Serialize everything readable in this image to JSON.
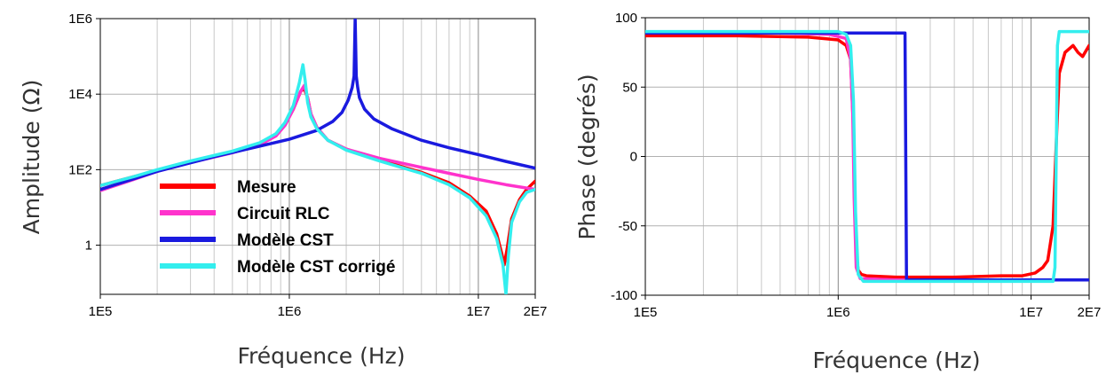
{
  "chart_data": [
    {
      "type": "line",
      "xscale": "log",
      "yscale": "log",
      "xlim": [
        100000,
        20000000
      ],
      "ylim": [
        0.05,
        1000000
      ],
      "xlabel": "Fréquence  (Hz)",
      "ylabel": "Amplitude (Ω)",
      "x_ticks": [
        {
          "value": 100000,
          "label": "1E5"
        },
        {
          "value": 1000000,
          "label": "1E6"
        },
        {
          "value": 10000000,
          "label": "1E7"
        },
        {
          "value": 20000000,
          "label": "2E7"
        }
      ],
      "y_ticks": [
        {
          "value": 1,
          "label": "1"
        },
        {
          "value": 100,
          "label": "1E2"
        },
        {
          "value": 10000,
          "label": "1E4"
        },
        {
          "value": 1000000,
          "label": "1E6"
        }
      ],
      "grid": true,
      "legend_position": "bottom-left",
      "series": [
        {
          "name": "Mesure",
          "color": "#ff0000",
          "x": [
            100000,
            150000,
            200000,
            300000,
            500000,
            700000,
            850000,
            950000,
            1050000,
            1150000,
            1200000,
            1250000,
            1300000,
            1400000,
            1600000,
            2000000,
            3000000,
            5000000,
            7000000,
            9000000,
            11000000,
            12500000,
            13300000,
            13700000,
            14200000,
            15000000,
            16500000,
            18000000,
            20000000
          ],
          "y": [
            38,
            65,
            95,
            160,
            290,
            480,
            800,
            1600,
            4000,
            12000,
            14000,
            8000,
            3000,
            1300,
            600,
            350,
            180,
            85,
            45,
            20,
            8,
            2,
            0.6,
            0.3,
            0.8,
            5,
            16,
            30,
            50
          ]
        },
        {
          "name": "Circuit RLC",
          "color": "#ff33cc",
          "x": [
            100000,
            150000,
            200000,
            300000,
            500000,
            700000,
            850000,
            950000,
            1050000,
            1150000,
            1200000,
            1250000,
            1300000,
            1400000,
            1600000,
            2000000,
            3000000,
            5000000,
            7000000,
            10000000,
            14000000,
            20000000
          ],
          "y": [
            28,
            55,
            90,
            155,
            280,
            460,
            780,
            1500,
            4000,
            12000,
            17000,
            8000,
            3000,
            1300,
            600,
            350,
            200,
            115,
            80,
            55,
            40,
            30
          ]
        },
        {
          "name": "Modèle CST",
          "color": "#1a1adf",
          "x": [
            100000,
            200000,
            400000,
            700000,
            1000000,
            1400000,
            1700000,
            1900000,
            2050000,
            2150000,
            2200000,
            2230000,
            2260000,
            2300000,
            2350000,
            2500000,
            2800000,
            3500000,
            5000000,
            7000000,
            10000000,
            14000000,
            20000000
          ],
          "y": [
            30,
            90,
            220,
            420,
            640,
            1100,
            1900,
            3300,
            7000,
            15000,
            30000,
            1000000,
            30000,
            15000,
            8000,
            4000,
            2200,
            1200,
            600,
            380,
            250,
            165,
            110
          ]
        },
        {
          "name": "Modèle CST corrigé",
          "color": "#33eeee",
          "x": [
            100000,
            150000,
            200000,
            300000,
            500000,
            700000,
            850000,
            950000,
            1050000,
            1130000,
            1180000,
            1210000,
            1250000,
            1300000,
            1400000,
            1600000,
            2000000,
            3000000,
            5000000,
            7000000,
            9000000,
            11000000,
            12500000,
            13500000,
            14000000,
            14400000,
            15000000,
            16500000,
            18000000,
            20000000
          ],
          "y": [
            38,
            65,
            100,
            170,
            310,
            520,
            900,
            1800,
            5000,
            20000,
            60000,
            25000,
            6000,
            2500,
            1200,
            600,
            330,
            170,
            80,
            40,
            18,
            6,
            1.5,
            0.3,
            0.05,
            0.5,
            4,
            14,
            25,
            30
          ]
        }
      ]
    },
    {
      "type": "line",
      "xscale": "log",
      "xlim": [
        100000,
        20000000
      ],
      "ylim": [
        -100,
        100
      ],
      "xlabel": "Fréquence  (Hz)",
      "ylabel": "Phase  (degrés)",
      "x_ticks": [
        {
          "value": 100000,
          "label": "1E5"
        },
        {
          "value": 1000000,
          "label": "1E6"
        },
        {
          "value": 10000000,
          "label": "1E7"
        },
        {
          "value": 20000000,
          "label": "2E7"
        }
      ],
      "y_ticks": [
        {
          "value": -100,
          "label": "-100"
        },
        {
          "value": -50,
          "label": "-50"
        },
        {
          "value": 0,
          "label": "0"
        },
        {
          "value": 50,
          "label": "50"
        },
        {
          "value": 100,
          "label": "100"
        }
      ],
      "grid": true,
      "series": [
        {
          "name": "Mesure",
          "color": "#ff0000",
          "x": [
            100000,
            300000,
            700000,
            1000000,
            1100000,
            1160000,
            1200000,
            1220000,
            1240000,
            1270000,
            1320000,
            1400000,
            2000000,
            4000000,
            7000000,
            9000000,
            10500000,
            11500000,
            12200000,
            13000000,
            13600000,
            14000000,
            15000000,
            16500000,
            17500000,
            18500000,
            20000000
          ],
          "y": [
            87,
            87,
            86,
            84,
            80,
            70,
            20,
            -40,
            -70,
            -82,
            -85,
            -86,
            -87,
            -87,
            -86,
            -86,
            -84,
            -80,
            -75,
            -50,
            20,
            60,
            75,
            80,
            75,
            72,
            80
          ]
        },
        {
          "name": "Circuit RLC",
          "color": "#ff33cc",
          "x": [
            100000,
            500000,
            900000,
            1100000,
            1160000,
            1190000,
            1200000,
            1210000,
            1240000,
            1300000,
            2000000,
            20000000
          ],
          "y": [
            89,
            89,
            88,
            85,
            70,
            30,
            0,
            -30,
            -80,
            -88,
            -89,
            -89
          ]
        },
        {
          "name": "Modèle CST",
          "color": "#1a1adf",
          "x": [
            100000,
            1000000,
            2000000,
            2220000,
            2240000,
            2260000,
            3000000,
            20000000
          ],
          "y": [
            89,
            89,
            89,
            89,
            0,
            -89,
            -89,
            -89
          ]
        },
        {
          "name": "Modèle CST corrigé",
          "color": "#33eeee",
          "x": [
            100000,
            800000,
            1000000,
            1100000,
            1160000,
            1200000,
            1230000,
            1270000,
            1350000,
            3000000,
            13000000,
            13300000,
            13500000,
            13700000,
            14000000,
            20000000
          ],
          "y": [
            90,
            90,
            90,
            88,
            80,
            40,
            -40,
            -85,
            -90,
            -90,
            -90,
            -80,
            0,
            80,
            90,
            90
          ]
        }
      ]
    }
  ]
}
